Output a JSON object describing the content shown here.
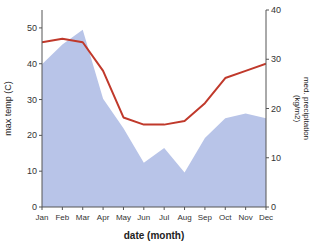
{
  "chart_data": {
    "type": "line",
    "categories": [
      "Jan",
      "Feb",
      "Mar",
      "Apr",
      "May",
      "Jun",
      "Jul",
      "Aug",
      "Sep",
      "Oct",
      "Nov",
      "Dec"
    ],
    "series": [
      {
        "type": "area",
        "axis": "y2",
        "color": "#b8c4e8",
        "values": [
          29,
          33,
          36,
          22,
          16,
          9,
          12,
          7,
          14,
          18,
          19,
          18
        ]
      },
      {
        "type": "line",
        "color": "#c0392b",
        "values": [
          46,
          47,
          46,
          38,
          25,
          23,
          23,
          24,
          29,
          36,
          38,
          40
        ]
      }
    ],
    "ylim": [
      0,
      55
    ],
    "yticks": [
      0,
      10,
      20,
      30,
      40,
      50
    ],
    "y2lim": [
      0,
      40
    ],
    "y2ticks": [
      0,
      10,
      20,
      30,
      40
    ],
    "xlabel": "date (month)",
    "ylabel": "max temp (C)",
    "y2label": "med. precipitation\n(kg/m2)",
    "grid": false
  }
}
